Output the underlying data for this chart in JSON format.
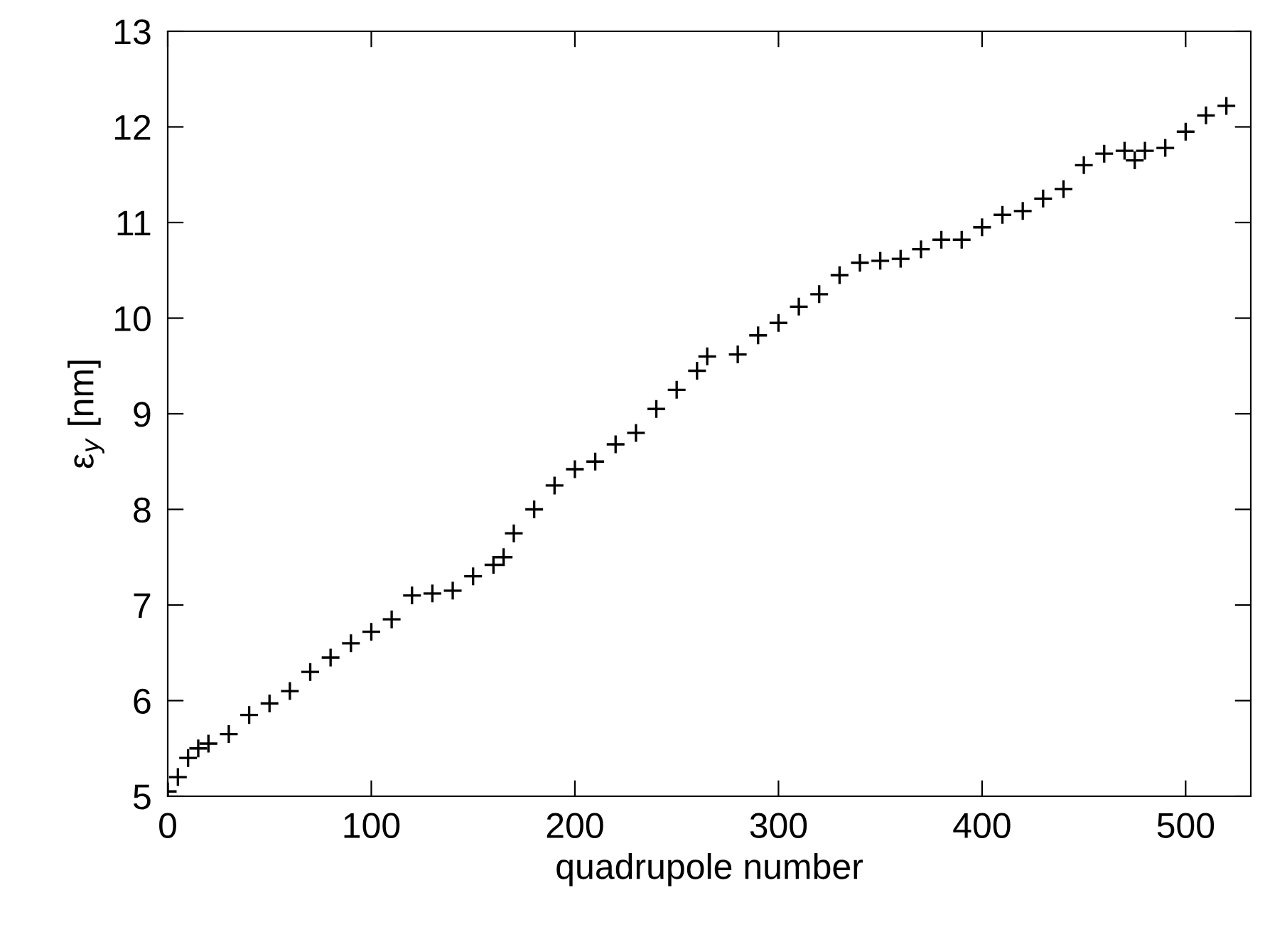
{
  "chart_data": {
    "type": "scatter",
    "xlabel": "quadrupole number",
    "ylabel": "ε$_{y}$ [nm]",
    "x": [
      0,
      5,
      10,
      15,
      20,
      30,
      40,
      50,
      60,
      70,
      80,
      90,
      100,
      110,
      120,
      130,
      140,
      150,
      160,
      165,
      170,
      180,
      190,
      200,
      210,
      220,
      230,
      240,
      250,
      260,
      265,
      280,
      290,
      300,
      310,
      320,
      330,
      340,
      350,
      360,
      370,
      380,
      390,
      400,
      410,
      420,
      430,
      440,
      450,
      460,
      470,
      475,
      480,
      490,
      500,
      510,
      520
    ],
    "series": [
      {
        "color": "#000000",
        "values": [
          5.05,
          5.2,
          5.4,
          5.5,
          5.55,
          5.65,
          5.85,
          5.97,
          6.1,
          6.3,
          6.45,
          6.6,
          6.72,
          6.85,
          7.1,
          7.12,
          7.15,
          7.3,
          7.42,
          7.5,
          7.75,
          8.0,
          8.25,
          8.42,
          8.5,
          8.68,
          8.8,
          9.05,
          9.25,
          9.45,
          9.6,
          9.62,
          9.82,
          9.95,
          10.12,
          10.25,
          10.45,
          10.58,
          10.6,
          10.62,
          10.72,
          10.82,
          10.82,
          10.95,
          11.08,
          11.12,
          11.25,
          11.35,
          11.6,
          11.72,
          11.75,
          11.65,
          11.75,
          11.78,
          11.95,
          12.12,
          12.22
        ]
      }
    ],
    "marker": "cross",
    "xlim": [
      0,
      532
    ],
    "xticks": [
      0,
      100,
      200,
      300,
      400,
      500
    ],
    "ylim": [
      5,
      13
    ],
    "yticks": [
      5,
      6,
      7,
      8,
      9,
      10,
      11,
      12,
      13
    ],
    "grid": false,
    "legend": false
  }
}
